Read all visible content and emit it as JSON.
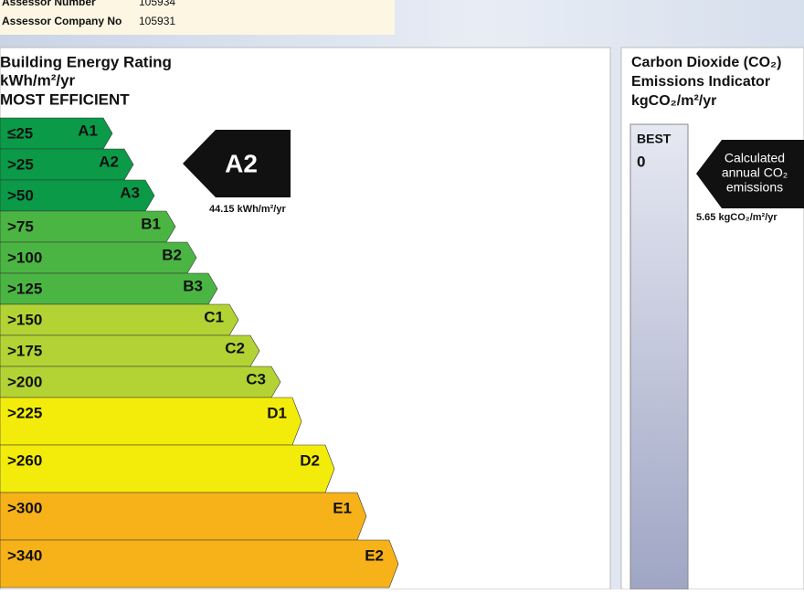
{
  "header": {
    "fields": [
      {
        "label": "Assessor Number",
        "value": "105934"
      },
      {
        "label": "Assessor Company No",
        "value": "105931"
      }
    ]
  },
  "energy": {
    "title": "Building Energy Rating",
    "unit": "kWh/m²/yr",
    "subtitle": "MOST EFFICIENT",
    "bands": [
      {
        "threshold": "≤25",
        "grade": "A1",
        "color": "#0a9a48"
      },
      {
        "threshold": ">25",
        "grade": "A2",
        "color": "#0a9a48"
      },
      {
        "threshold": ">50",
        "grade": "A3",
        "color": "#0a9a48"
      },
      {
        "threshold": ">75",
        "grade": "B1",
        "color": "#4bb543"
      },
      {
        "threshold": ">100",
        "grade": "B2",
        "color": "#4bb543"
      },
      {
        "threshold": ">125",
        "grade": "B3",
        "color": "#4bb543"
      },
      {
        "threshold": ">150",
        "grade": "C1",
        "color": "#b3d334"
      },
      {
        "threshold": ">175",
        "grade": "C2",
        "color": "#b3d334"
      },
      {
        "threshold": ">200",
        "grade": "C3",
        "color": "#b3d334"
      },
      {
        "threshold": ">225",
        "grade": "D1",
        "color": "#f3ec0b"
      },
      {
        "threshold": ">260",
        "grade": "D2",
        "color": "#f3ec0b"
      },
      {
        "threshold": ">300",
        "grade": "E1",
        "color": "#f7b21a"
      },
      {
        "threshold": ">340",
        "grade": "E2",
        "color": "#f7b21a"
      }
    ],
    "rating": "A2",
    "rating_value": "44.15 kWh/m²/yr"
  },
  "co2": {
    "title_lines": [
      "Carbon Dioxide (CO₂)",
      "Emissions Indicator",
      "kgCO₂/m²/yr"
    ],
    "best_label": "BEST",
    "best_value": "0",
    "callout_lines": [
      "Calculated",
      "annual CO₂",
      "emissions"
    ],
    "value": "5.65 kgCO₂/m²/yr"
  }
}
